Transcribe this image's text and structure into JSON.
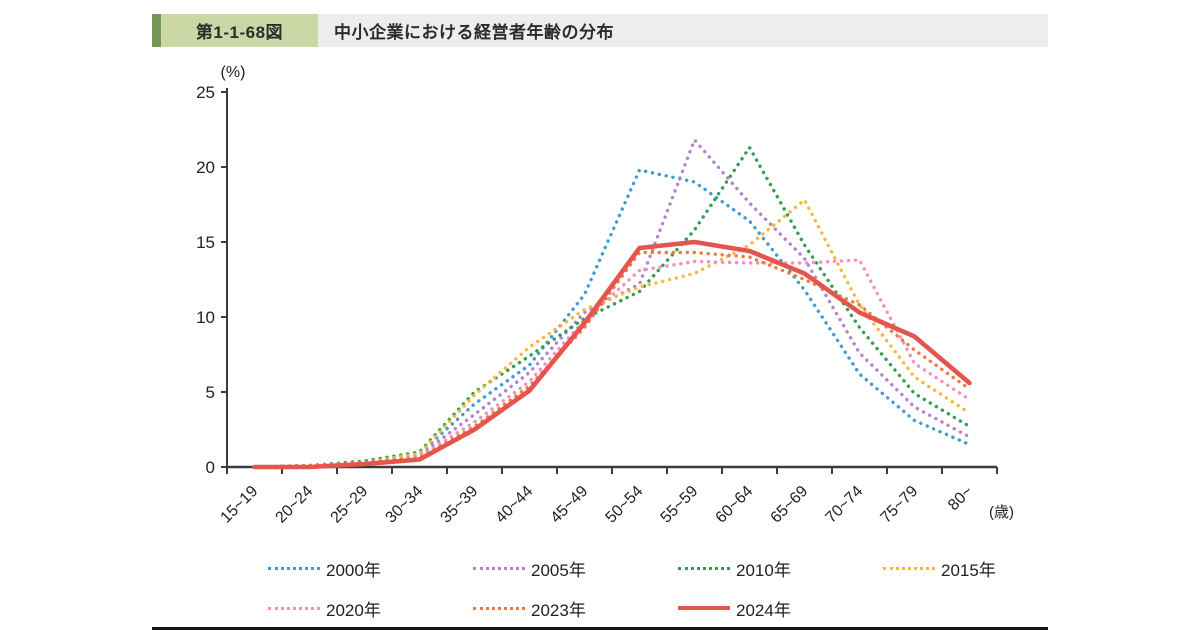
{
  "header": {
    "figure_label": "第1-1-68図",
    "title": "中小企業における経営者年齢の分布",
    "accent_color": "#77975a",
    "label_bg": "#cbd8a5",
    "bar_bg": "#ededed"
  },
  "chart_data": {
    "type": "line",
    "title": "中小企業における経営者年齢の分布",
    "ylabel": "(%)",
    "xlabel": "(歳)",
    "ylim": [
      0,
      25
    ],
    "yticks": [
      0,
      5,
      10,
      15,
      20,
      25
    ],
    "grid": false,
    "legend_position": "bottom",
    "categories": [
      "15~19",
      "20~24",
      "25~29",
      "30~34",
      "35~39",
      "40~44",
      "45~49",
      "50~54",
      "55~59",
      "60~64",
      "65~69",
      "70~74",
      "75~79",
      "80~"
    ],
    "series": [
      {
        "name": "2000年",
        "color": "#3e9bd5",
        "style": "dotted",
        "values": [
          0.0,
          0.1,
          0.3,
          0.9,
          4.2,
          6.8,
          11.5,
          19.8,
          19.0,
          16.4,
          11.8,
          6.2,
          3.1,
          1.5
        ]
      },
      {
        "name": "2005年",
        "color": "#b583ce",
        "style": "dotted",
        "values": [
          0.0,
          0.1,
          0.3,
          0.8,
          3.5,
          6.3,
          10.3,
          12.2,
          21.8,
          17.6,
          13.9,
          7.6,
          4.0,
          2.0
        ]
      },
      {
        "name": "2010年",
        "color": "#2fa04d",
        "style": "dotted",
        "values": [
          0.0,
          0.1,
          0.4,
          1.0,
          5.0,
          7.4,
          9.9,
          11.7,
          15.8,
          21.3,
          14.8,
          9.3,
          4.9,
          2.7
        ]
      },
      {
        "name": "2015年",
        "color": "#f6b83c",
        "style": "dotted",
        "values": [
          0.0,
          0.1,
          0.3,
          0.9,
          4.8,
          8.0,
          10.5,
          12.0,
          12.9,
          14.8,
          17.8,
          10.8,
          6.0,
          3.6
        ]
      },
      {
        "name": "2020年",
        "color": "#f48fc0",
        "style": "dotted",
        "values": [
          0.0,
          0.1,
          0.3,
          0.7,
          3.0,
          5.7,
          9.8,
          13.1,
          13.7,
          13.6,
          13.6,
          13.8,
          6.9,
          4.5
        ]
      },
      {
        "name": "2023年",
        "color": "#ee7a3d",
        "style": "dotted",
        "values": [
          0.0,
          0.1,
          0.3,
          0.6,
          2.7,
          5.4,
          9.3,
          14.3,
          14.3,
          14.0,
          12.5,
          10.8,
          7.8,
          5.2
        ]
      },
      {
        "name": "2024年",
        "color": "#e4554e",
        "style": "solid",
        "values": [
          0.0,
          0.0,
          0.2,
          0.5,
          2.5,
          5.1,
          9.6,
          14.6,
          15.0,
          14.4,
          12.9,
          10.3,
          8.7,
          5.6
        ]
      }
    ]
  }
}
